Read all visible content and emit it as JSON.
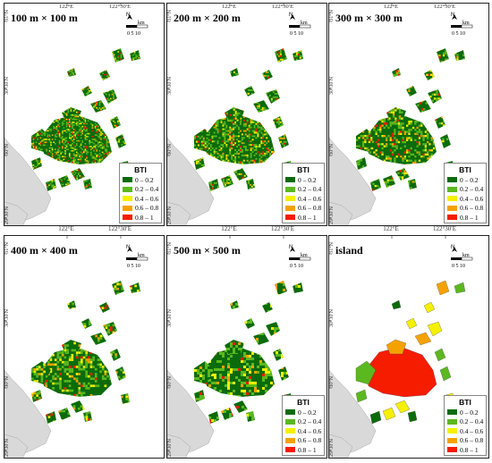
{
  "panels": [
    {
      "title": "100 m × 100 m",
      "type": "grid"
    },
    {
      "title": "200 m × 200 m",
      "type": "grid"
    },
    {
      "title": "300 m × 300 m",
      "type": "grid"
    },
    {
      "title": "400 m × 400 m",
      "type": "grid"
    },
    {
      "title": "500 m × 500 m",
      "type": "grid"
    },
    {
      "title": "island",
      "type": "island"
    }
  ],
  "axes": {
    "lon_labels": [
      "122°E",
      "122°30′E"
    ],
    "lat_labels": [
      "31°N",
      "30°30′N",
      "30°N",
      "29°30′N"
    ]
  },
  "scale": {
    "north": "N",
    "unit": "km",
    "numbers": "0 5 10"
  },
  "legend": {
    "title": "BTI",
    "classes": [
      {
        "label": "0 – 0.2",
        "color": "#0b6b0b"
      },
      {
        "label": "0.2 – 0.4",
        "color": "#5bb81f"
      },
      {
        "label": "0.4 – 0.6",
        "color": "#f5f000"
      },
      {
        "label": "0.6 – 0.8",
        "color": "#f5a200"
      },
      {
        "label": "0.8 – 1",
        "color": "#f51c00"
      }
    ]
  },
  "colors": {
    "land": "#d9d9d9",
    "sea": "#ffffff"
  }
}
